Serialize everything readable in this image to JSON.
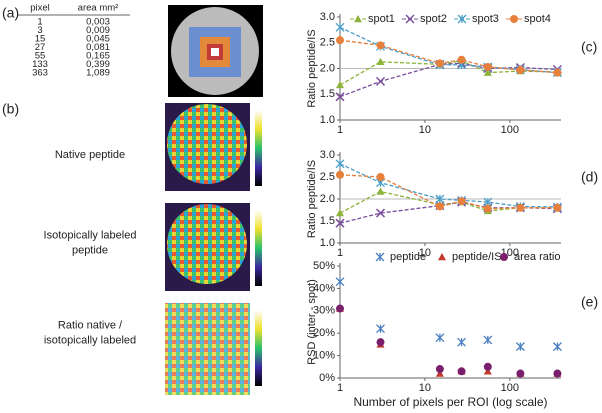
{
  "panel_labels": [
    "(a)",
    "(b)",
    "(c)",
    "(d)",
    "(e)"
  ],
  "table": {
    "headers": [
      "pixel",
      "area mm²"
    ],
    "rows": [
      [
        "1",
        "0,003"
      ],
      [
        "3",
        "0,009"
      ],
      [
        "15",
        "0,045"
      ],
      [
        "27",
        "0,081"
      ],
      [
        "55",
        "0,165"
      ],
      [
        "133",
        "0,399"
      ],
      [
        "363",
        "1,089"
      ]
    ]
  },
  "image_labels": [
    [
      "Native peptide"
    ],
    [
      "Isotopically labeled",
      "peptide"
    ],
    [
      "Ratio native /",
      "isotopically labeled"
    ]
  ],
  "chart_data": [
    {
      "type": "line",
      "x": [
        1,
        3,
        15,
        27,
        55,
        133,
        363
      ],
      "log_x": true,
      "xlim": [
        1,
        400
      ],
      "xticks": [
        1,
        10,
        100
      ],
      "ylim": [
        1,
        3
      ],
      "yticks": [
        {
          "value": 1,
          "label": "1.0"
        },
        {
          "value": 1.5,
          "label": "1.5"
        },
        {
          "value": 2,
          "label": "2.0"
        },
        {
          "value": 2.5,
          "label": "2.5"
        },
        {
          "value": 3,
          "label": "3.0"
        }
      ],
      "y_label": "Ratio peptide/IS",
      "reference_line": 2,
      "legend": "top",
      "series": [
        {
          "name": "spot1",
          "color": "#8db33a",
          "marker": "triangle",
          "values": [
            1.68,
            2.13,
            2.08,
            2.15,
            1.92,
            1.95,
            1.93
          ]
        },
        {
          "name": "spot2",
          "color": "#7b4f9d",
          "marker": "x",
          "values": [
            1.45,
            1.75,
            2.08,
            2.1,
            2.0,
            2.02,
            1.98
          ]
        },
        {
          "name": "spot3",
          "color": "#4a9ec7",
          "marker": "asterisk",
          "values": [
            2.8,
            2.43,
            2.07,
            2.07,
            2.03,
            1.98,
            1.92
          ]
        },
        {
          "name": "spot4",
          "color": "#e6803c",
          "marker": "circle",
          "values": [
            2.55,
            2.45,
            2.1,
            2.17,
            2.03,
            1.97,
            1.92
          ]
        }
      ]
    },
    {
      "type": "line",
      "x": [
        1,
        3,
        15,
        27,
        55,
        133,
        363
      ],
      "log_x": true,
      "xlim": [
        1,
        400
      ],
      "xticks": [
        1,
        10,
        100
      ],
      "ylim": [
        1,
        3
      ],
      "yticks": [
        {
          "value": 1,
          "label": "1.0"
        },
        {
          "value": 1.5,
          "label": "1.5"
        },
        {
          "value": 2,
          "label": "2.0"
        },
        {
          "value": 2.5,
          "label": "2.5"
        },
        {
          "value": 3,
          "label": "3.0"
        }
      ],
      "y_label": "Ratio peptide/IS",
      "reference_line": 2,
      "series": [
        {
          "color": "#8db33a",
          "marker": "triangle",
          "values": [
            1.68,
            2.17,
            1.87,
            1.93,
            1.73,
            1.8,
            1.8
          ]
        },
        {
          "color": "#7b4f9d",
          "marker": "x",
          "values": [
            1.45,
            1.68,
            1.85,
            1.93,
            1.8,
            1.8,
            1.78
          ]
        },
        {
          "color": "#4a9ec7",
          "marker": "asterisk",
          "values": [
            2.8,
            2.37,
            2.0,
            1.97,
            1.93,
            1.83,
            1.82
          ]
        },
        {
          "color": "#e6803c",
          "marker": "circle",
          "values": [
            2.55,
            2.5,
            1.83,
            1.95,
            1.78,
            1.8,
            1.8
          ]
        }
      ]
    },
    {
      "type": "scatter",
      "x": [
        1,
        3,
        15,
        27,
        55,
        133,
        363
      ],
      "log_x": true,
      "xlim": [
        1,
        400
      ],
      "xticks": [
        1,
        10,
        100
      ],
      "ylim": [
        0,
        50
      ],
      "yticks": [
        {
          "value": 0,
          "label": "0%"
        },
        {
          "value": 10,
          "label": "10%"
        },
        {
          "value": 20,
          "label": "20%"
        },
        {
          "value": 30,
          "label": "30%"
        },
        {
          "value": 40,
          "label": "40%"
        },
        {
          "value": 50,
          "label": "50%"
        }
      ],
      "y_label": "RSD (inter - spot)",
      "x_label": "Number of pixels per ROI (log scale)",
      "legend": "top",
      "series": [
        {
          "name": "peptide",
          "color": "#4a7fc1",
          "marker": "asterisk",
          "values": [
            43,
            22,
            18,
            16,
            17,
            14,
            14
          ]
        },
        {
          "name": "peptide/IS",
          "color": "#c0392b",
          "marker": "triangle",
          "values": [
            31,
            15,
            2,
            3,
            3,
            2,
            2
          ]
        },
        {
          "name": "area ratio",
          "color": "#7a1f6b",
          "marker": "circle",
          "values": [
            31,
            16,
            4,
            3,
            5,
            2,
            2
          ]
        }
      ]
    }
  ]
}
